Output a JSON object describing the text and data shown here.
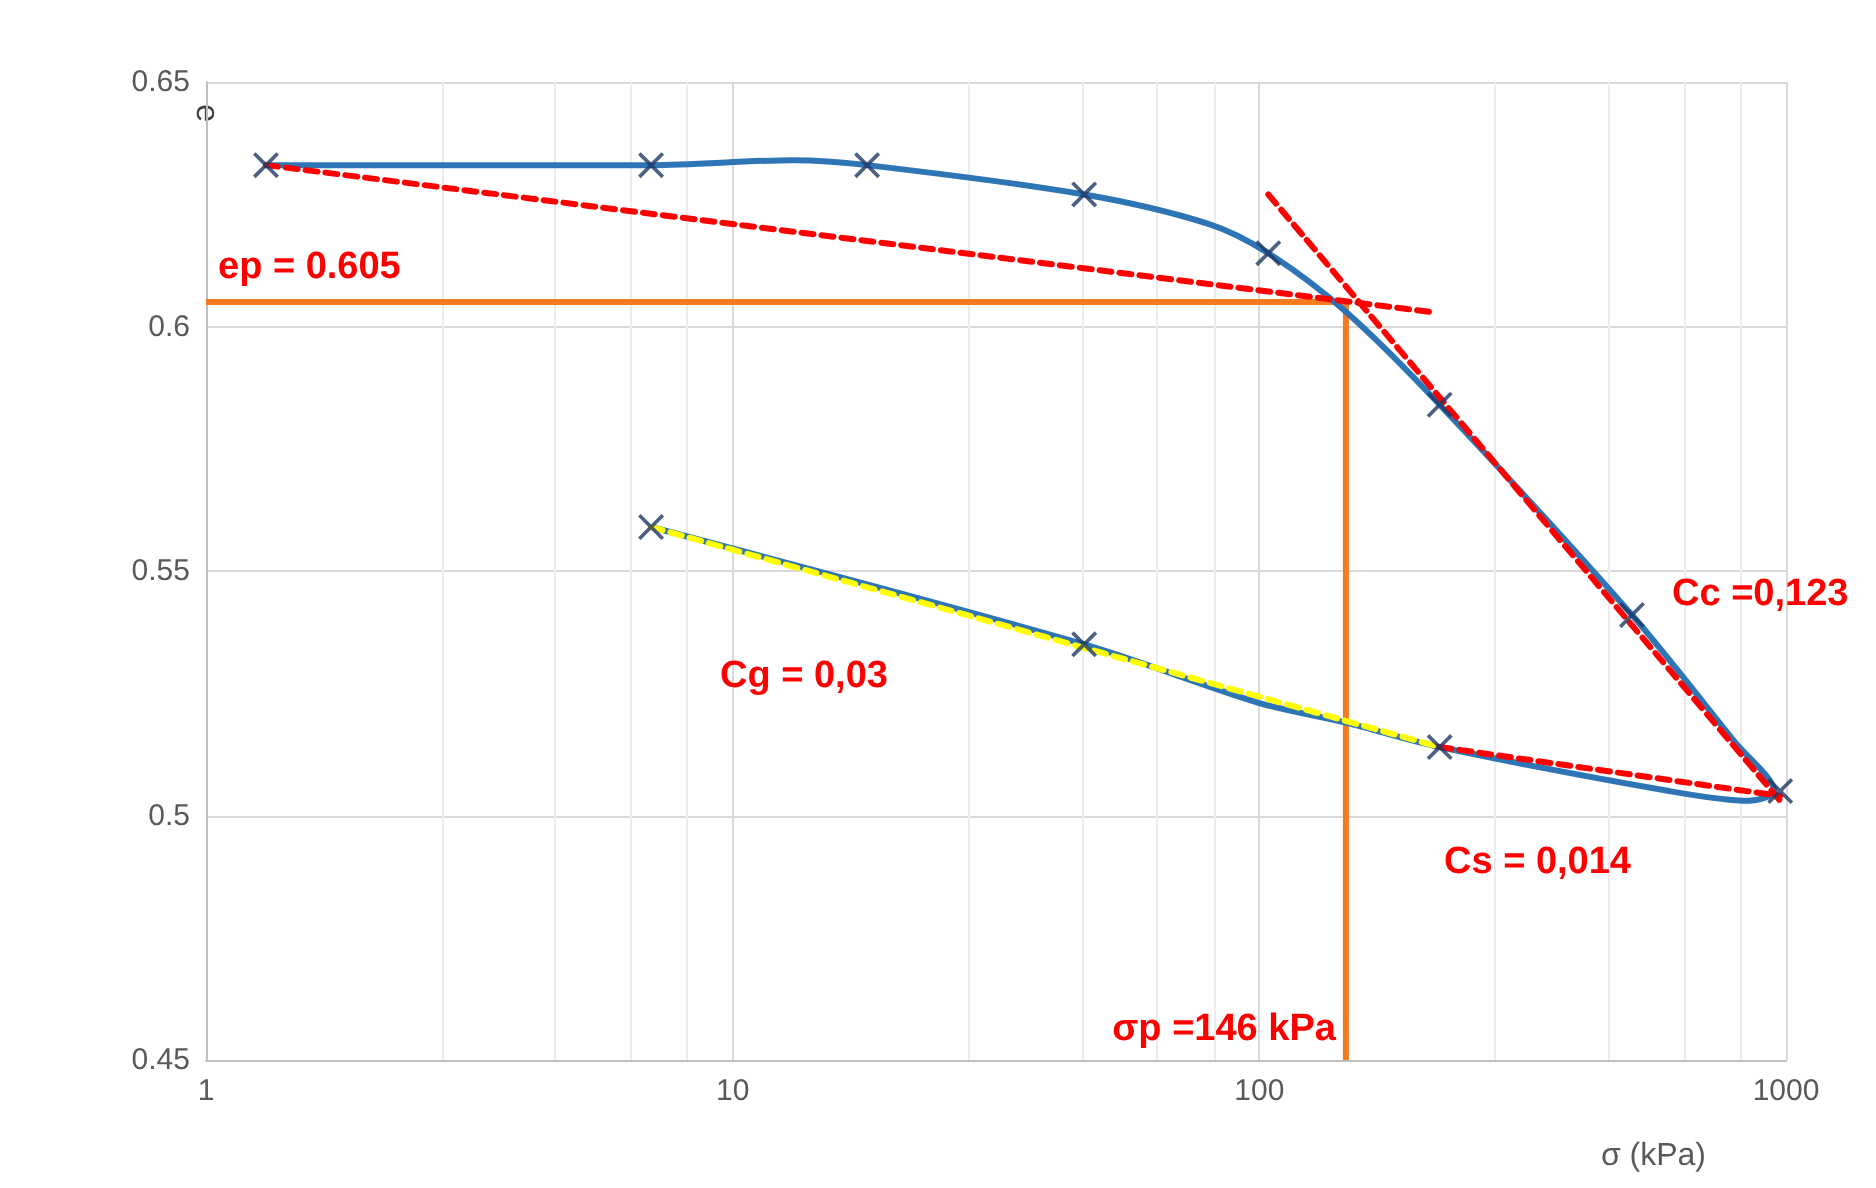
{
  "chart_data": {
    "type": "scatter",
    "xlabel": "σ (kPa)",
    "ylabel": "e",
    "log": "x",
    "xlim": [
      1,
      1000
    ],
    "xticks": [
      1,
      10,
      100,
      1000
    ],
    "ylim": [
      0.45,
      0.65
    ],
    "yticks": [
      {
        "value": 0.45,
        "label": "0.45"
      },
      {
        "value": 0.5,
        "label": "0.5"
      },
      {
        "value": 0.55,
        "label": "0.55"
      },
      {
        "value": 0.6,
        "label": "0.6"
      },
      {
        "value": 0.65,
        "label": "0.65"
      }
    ],
    "grid": true,
    "series": [
      {
        "type": "line",
        "color": "#2e75b6",
        "marker": "none",
        "line_style": "solid",
        "x": [
          1.3,
          7,
          13,
          18,
          46.5,
          80,
          104,
          146,
          220,
          510,
          800,
          950,
          850,
          600,
          220,
          146,
          100,
          46.5,
          7
        ],
        "values": [
          0.633,
          0.633,
          0.634,
          0.633,
          0.627,
          0.621,
          0.615,
          0.603,
          0.584,
          0.541,
          0.515,
          0.505,
          0.503,
          0.505,
          0.514,
          0.519,
          0.523,
          0.535,
          0.559
        ]
      },
      {
        "type": "line",
        "color": "#ff0000",
        "marker": "none",
        "line_style": "dashed",
        "x": [
          1.3,
          210
        ],
        "values": [
          0.633,
          0.603
        ]
      },
      {
        "type": "line",
        "color": "#ff0000",
        "marker": "none",
        "line_style": "dashed",
        "x": [
          104,
          975
        ],
        "values": [
          0.627,
          0.503
        ]
      },
      {
        "type": "line",
        "color": "#ff0000",
        "marker": "none",
        "line_style": "dashed",
        "x": [
          220,
          975
        ],
        "values": [
          0.514,
          0.504
        ]
      },
      {
        "type": "line",
        "color": "#ffff00",
        "marker": "none",
        "line_style": "dashed",
        "x": [
          7,
          220
        ],
        "values": [
          0.559,
          0.514
        ]
      },
      {
        "color": "#1f3864",
        "marker": "cross",
        "x": [
          1.3,
          7,
          18,
          46.5,
          104,
          220,
          510,
          975,
          220,
          46.5,
          7
        ],
        "values": [
          0.633,
          0.633,
          0.633,
          0.627,
          0.615,
          0.584,
          0.541,
          0.505,
          0.514,
          0.535,
          0.559
        ]
      }
    ],
    "ref_lines": [
      {
        "axis": "y",
        "value": 0.605,
        "label": "ep = 0.605",
        "color": "#f47b20"
      },
      {
        "axis": "x",
        "value": 146,
        "label": "σp =146 kPa",
        "color": "#f47b20"
      }
    ],
    "annotations": [
      "Cc =0,123",
      "Cg = 0,03",
      "Cs = 0,014"
    ]
  }
}
